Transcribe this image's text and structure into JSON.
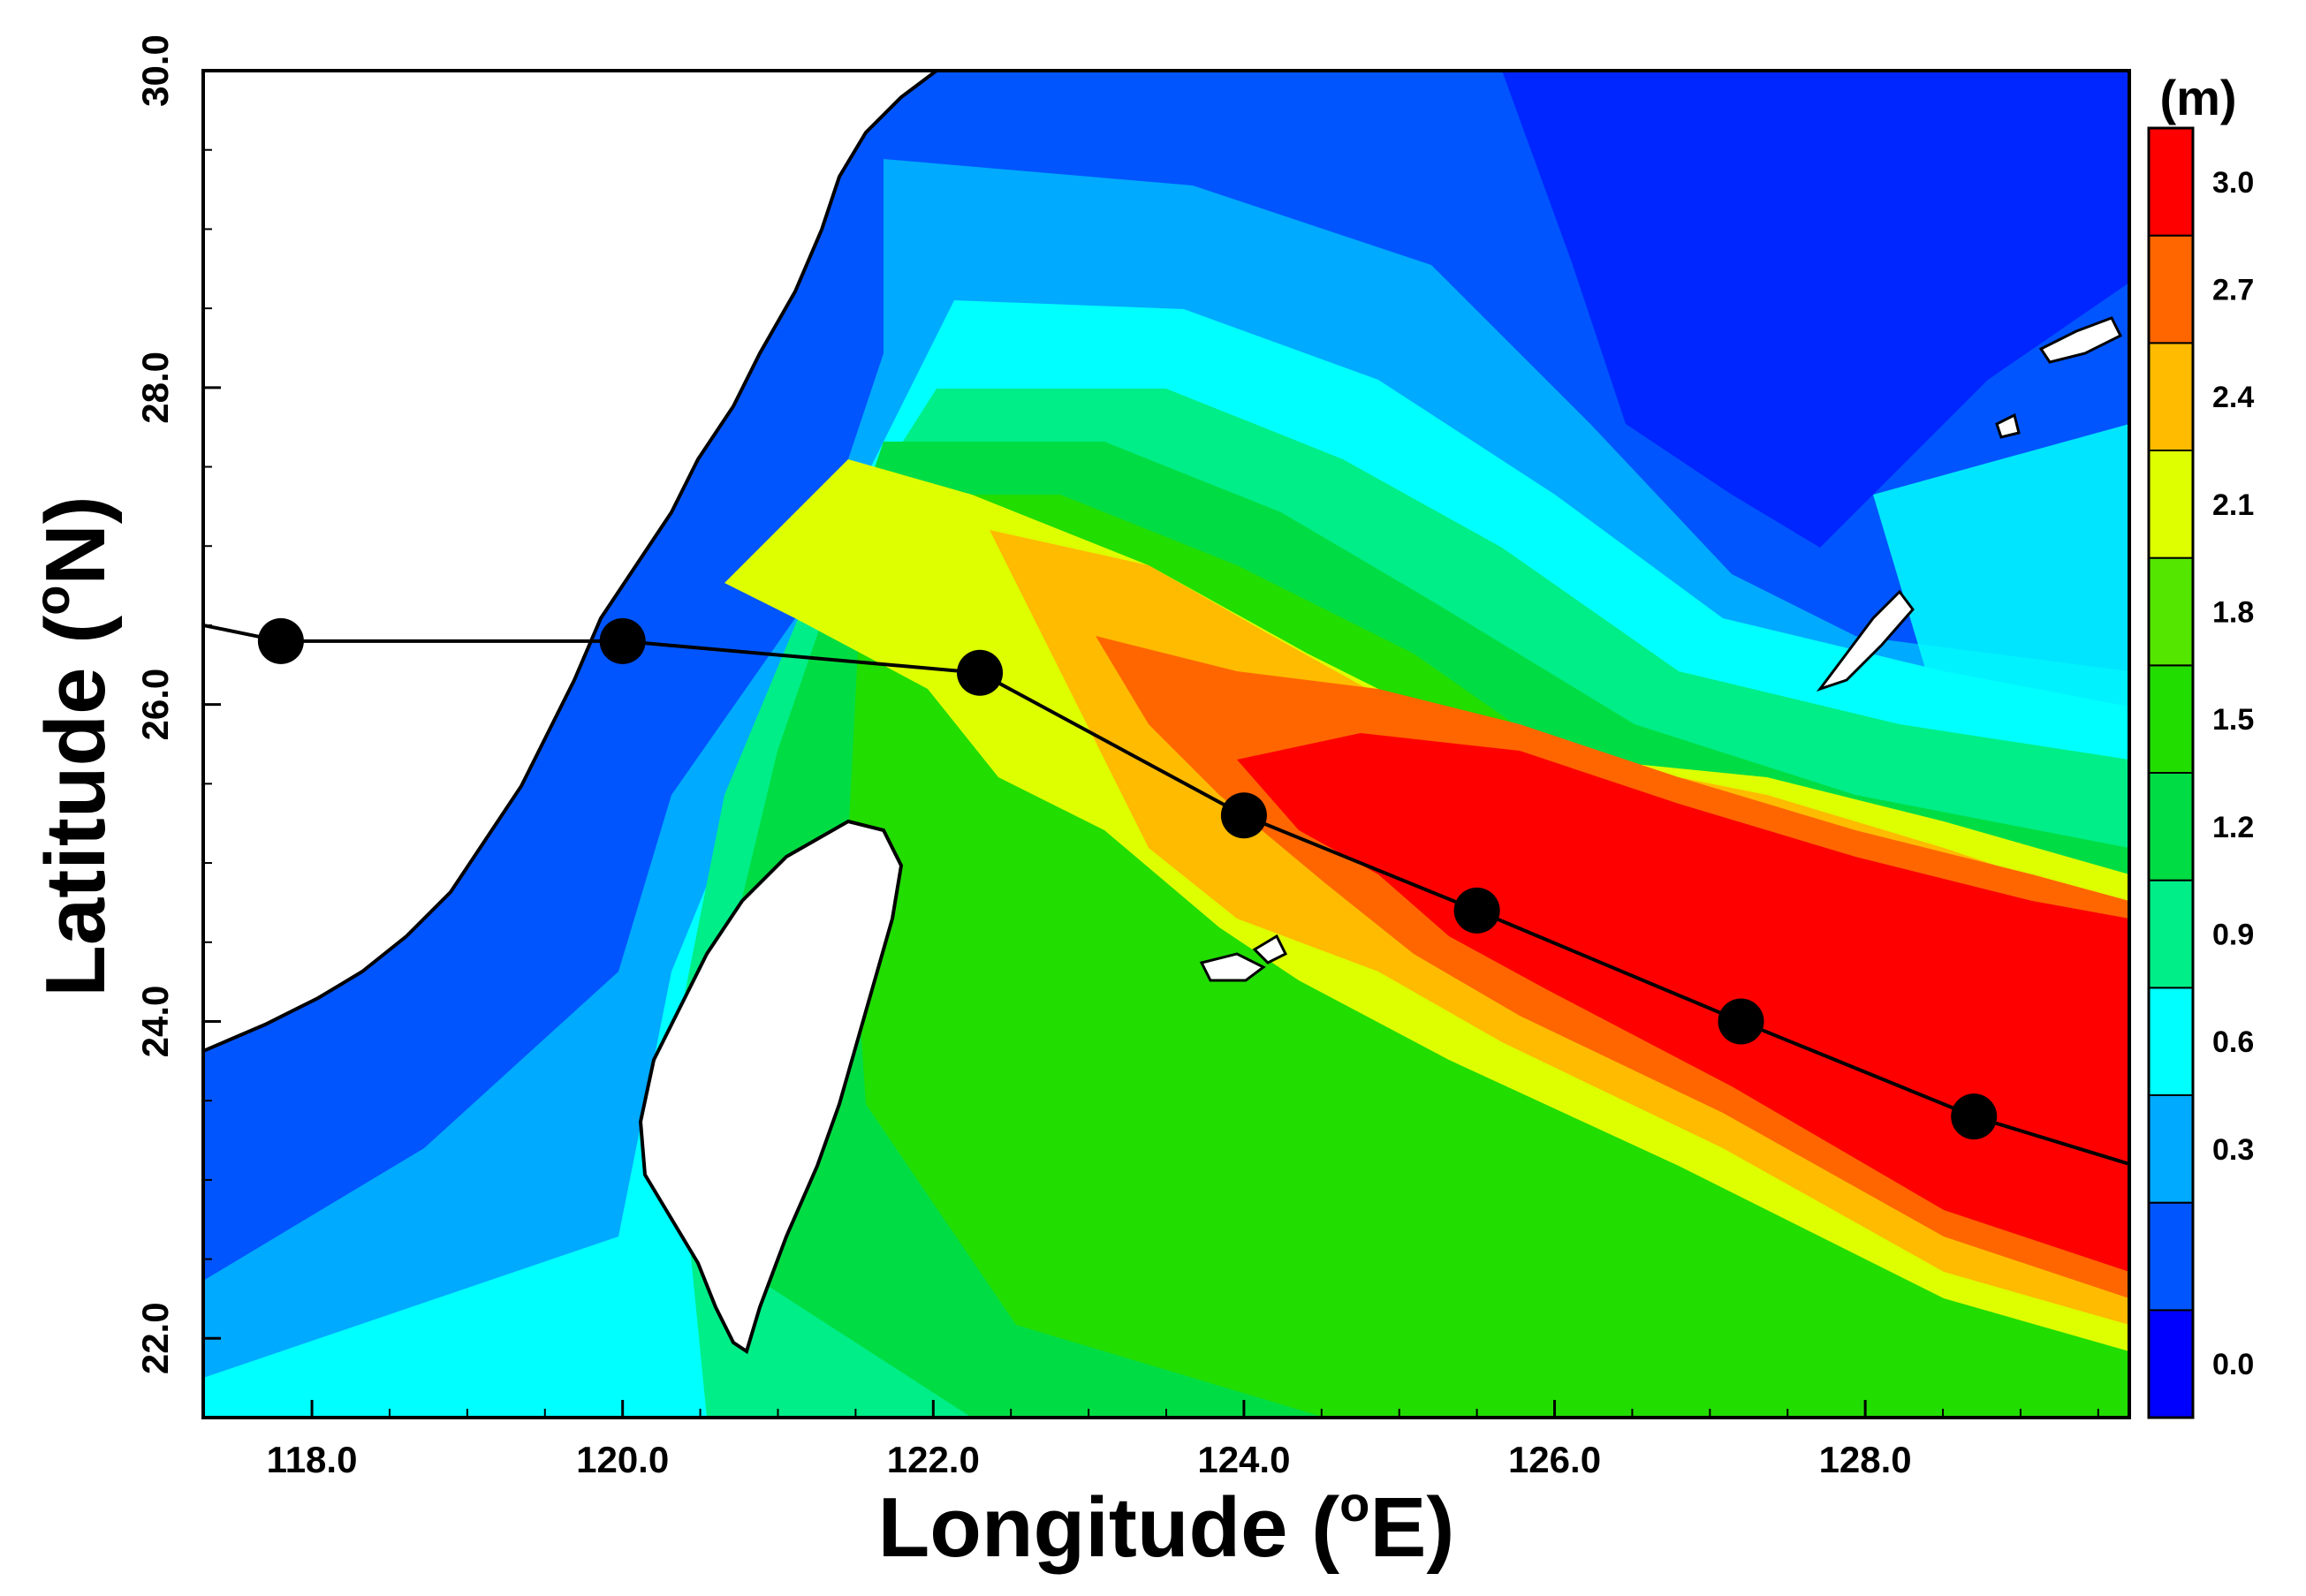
{
  "map": {
    "x_axis": {
      "title_text": "Longitude (",
      "title_sup": "o",
      "title_end": "E)",
      "range": [
        117.3,
        129.7
      ],
      "ticks": [
        {
          "value": 118.0,
          "label": "118.0"
        },
        {
          "value": 120.0,
          "label": "120.0"
        },
        {
          "value": 122.0,
          "label": "122.0"
        },
        {
          "value": 124.0,
          "label": "124.0"
        },
        {
          "value": 126.0,
          "label": "126.0"
        },
        {
          "value": 128.0,
          "label": "128.0"
        }
      ]
    },
    "y_axis": {
      "title_text": "Latitude (",
      "title_sup": "o",
      "title_end": "N)",
      "range": [
        21.5,
        30.0
      ],
      "ticks": [
        {
          "value": 22.0,
          "label": "22.0"
        },
        {
          "value": 24.0,
          "label": "24.0"
        },
        {
          "value": 26.0,
          "label": "26.0"
        },
        {
          "value": 28.0,
          "label": "28.0"
        },
        {
          "value": 30.0,
          "label": "30.0"
        }
      ]
    },
    "colorbar": {
      "unit": "(m)",
      "levels": [
        {
          "label": "0.0",
          "color": "#0000ff"
        },
        {
          "label": "",
          "color": "#0055ff"
        },
        {
          "label": "0.3",
          "color": "#00aaff"
        },
        {
          "label": "0.6",
          "color": "#00ffff"
        },
        {
          "label": "0.9",
          "color": "#00ee88"
        },
        {
          "label": "1.2",
          "color": "#00dd44"
        },
        {
          "label": "1.5",
          "color": "#22dd00"
        },
        {
          "label": "1.8",
          "color": "#55e600"
        },
        {
          "label": "2.1",
          "color": "#ddff00"
        },
        {
          "label": "2.4",
          "color": "#ffbb00"
        },
        {
          "label": "2.7",
          "color": "#ff6600"
        },
        {
          "label": "3.0",
          "color": "#ff0000"
        }
      ]
    },
    "typhoon_track": [
      {
        "lon": 117.8,
        "lat": 26.4
      },
      {
        "lon": 120.0,
        "lat": 26.4
      },
      {
        "lon": 122.3,
        "lat": 26.2
      },
      {
        "lon": 124.0,
        "lat": 25.3
      },
      {
        "lon": 125.5,
        "lat": 24.7
      },
      {
        "lon": 127.2,
        "lat": 24.0
      },
      {
        "lon": 128.7,
        "lat": 23.4
      }
    ],
    "track_extension": [
      {
        "lon": 117.3,
        "lat": 26.5
      },
      {
        "lon": 129.7,
        "lat": 23.1
      }
    ]
  }
}
